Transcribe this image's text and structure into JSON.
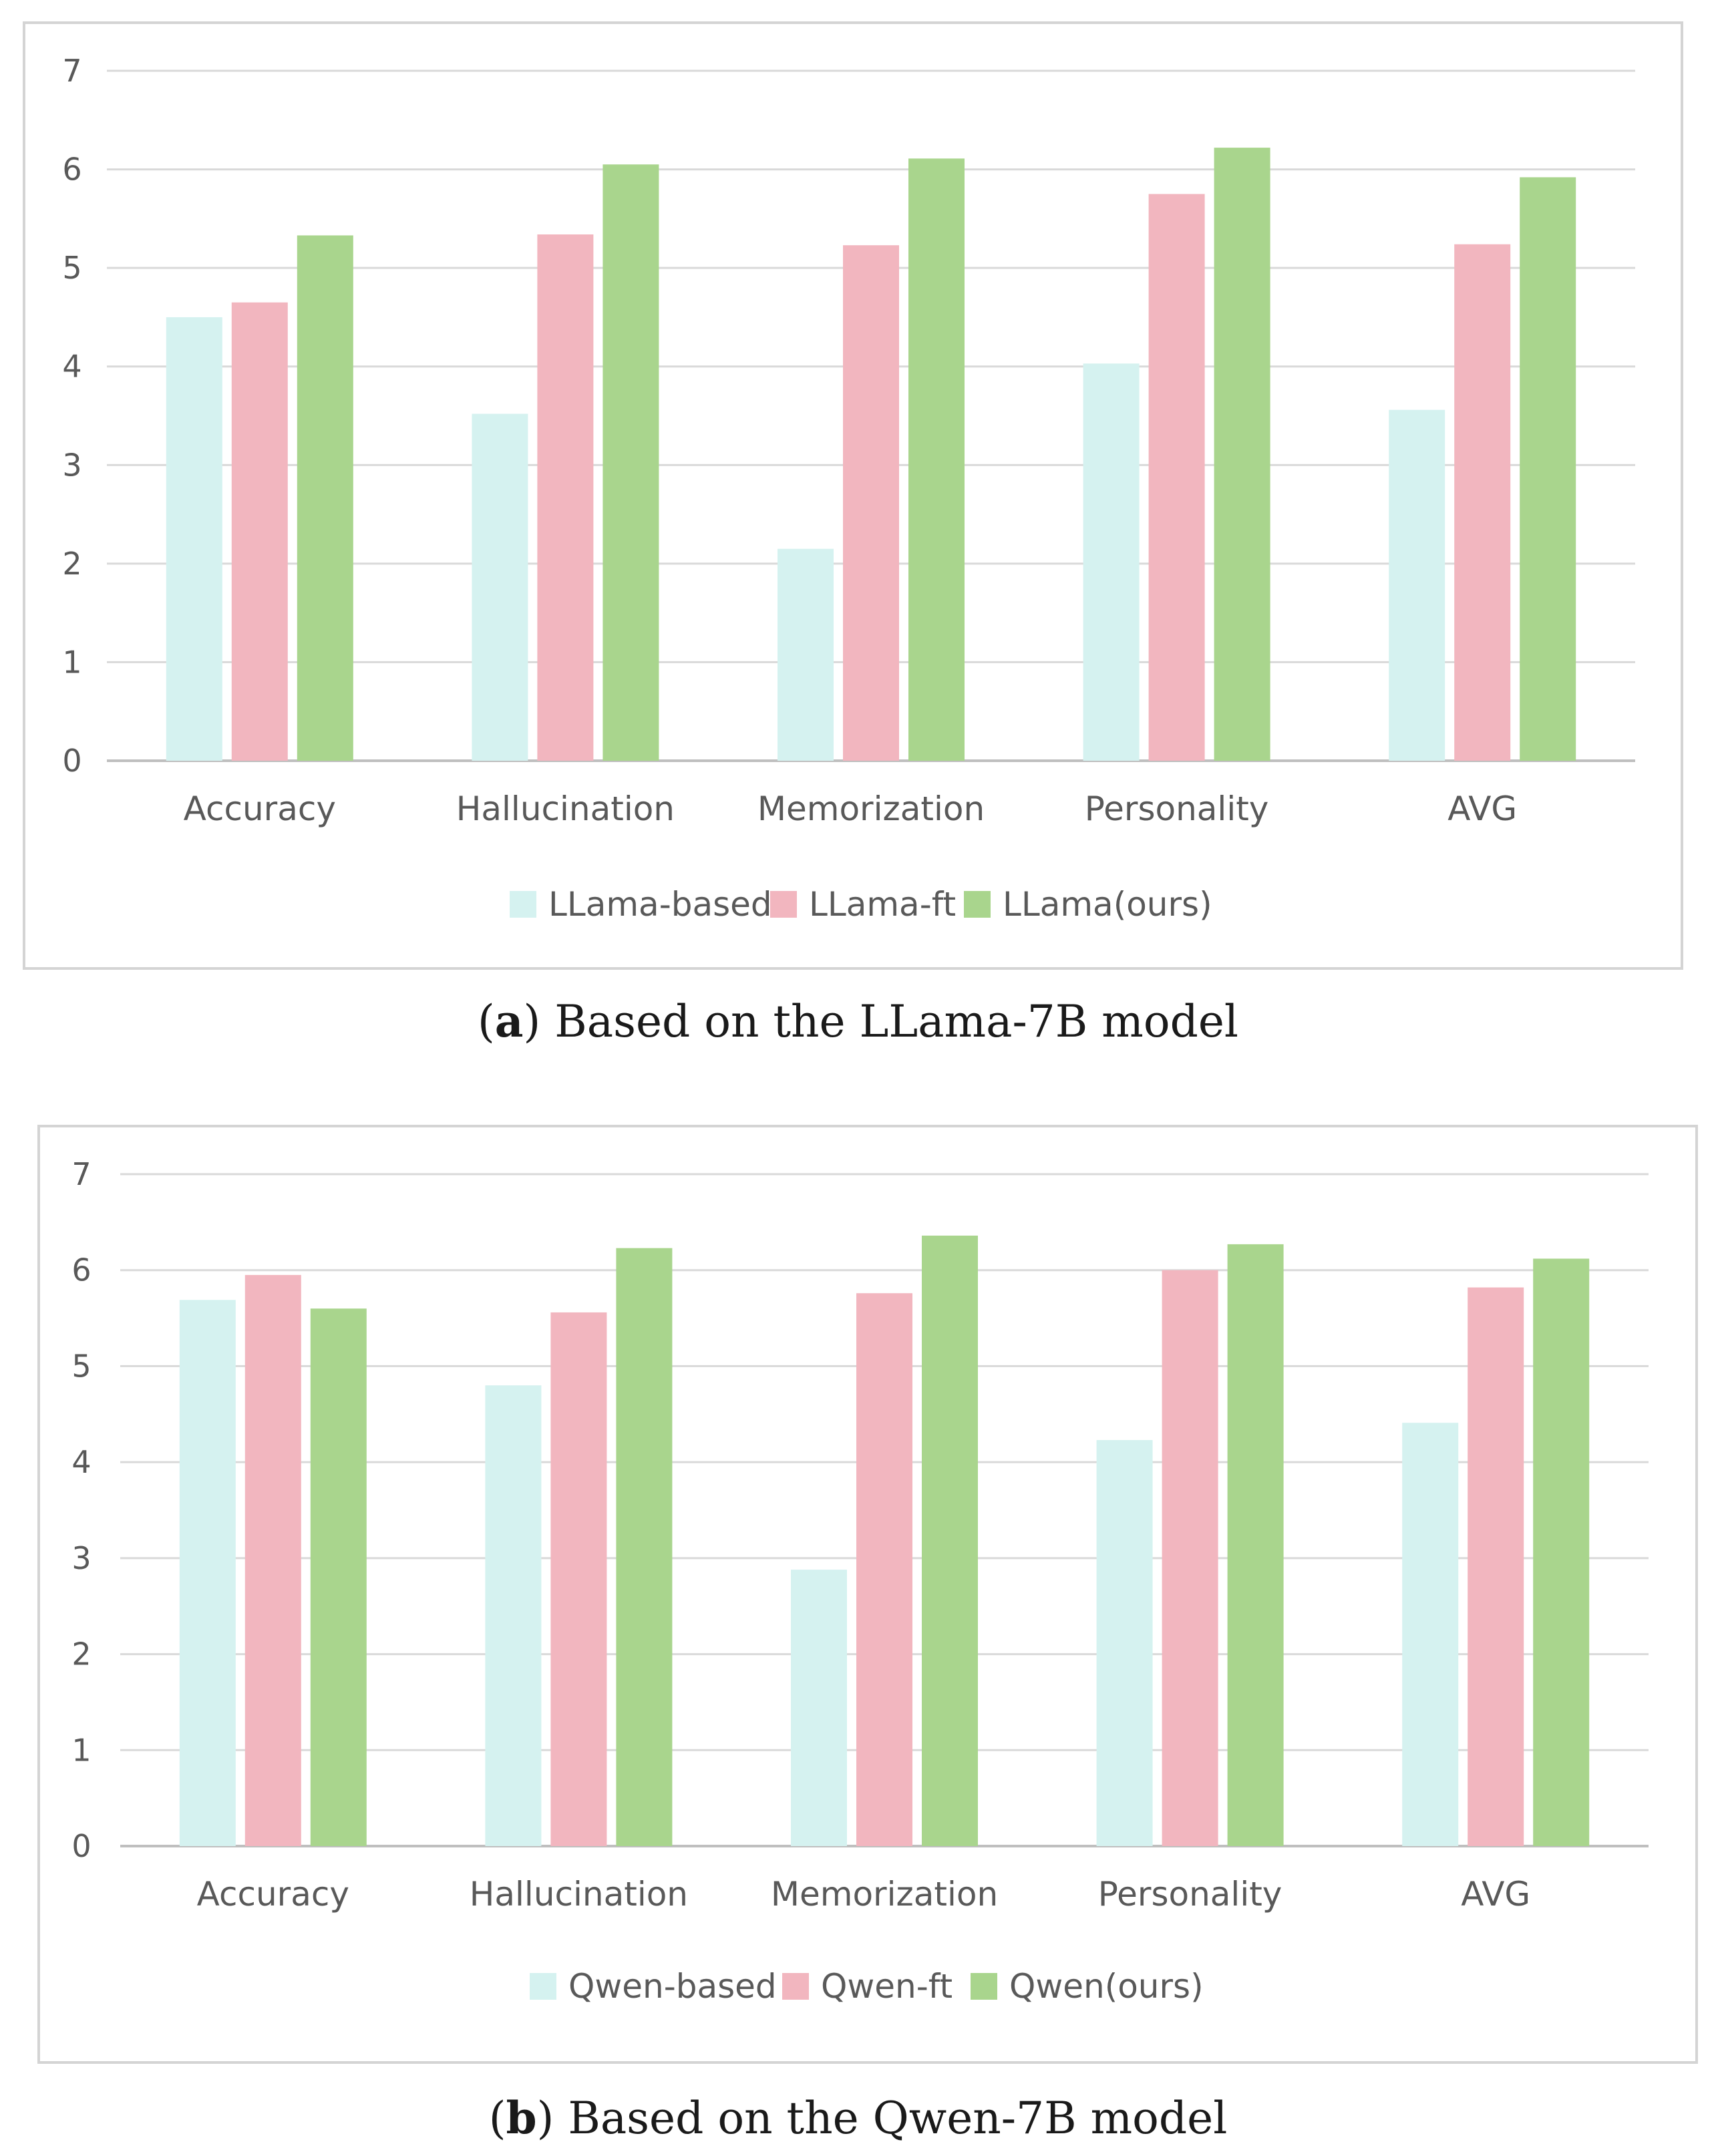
{
  "chart_data": [
    {
      "type": "bar",
      "title": "",
      "caption": {
        "label": "a",
        "text": "Based on the LLama-7B model"
      },
      "categories": [
        "Accuracy",
        "Hallucination",
        "Memorization",
        "Personality",
        "AVG"
      ],
      "series": [
        {
          "name": "LLama-based",
          "color": "#d5f2f0",
          "values": [
            4.5,
            3.52,
            2.15,
            4.03,
            3.56
          ]
        },
        {
          "name": "LLama-ft",
          "color": "#f2b6bf",
          "values": [
            4.65,
            5.34,
            5.23,
            5.75,
            5.24
          ]
        },
        {
          "name": "LLama(ours)",
          "color": "#a9d58d",
          "values": [
            5.33,
            6.05,
            6.11,
            6.22,
            5.92
          ]
        }
      ],
      "yticks": [
        "0",
        "1",
        "2",
        "3",
        "4",
        "5",
        "6",
        "7"
      ],
      "ylim": [
        0,
        7
      ],
      "grid": true,
      "legend": "bottom-center",
      "xlabel": "",
      "ylabel": ""
    },
    {
      "type": "bar",
      "title": "",
      "caption": {
        "label": "b",
        "text": "Based on the Qwen-7B model"
      },
      "categories": [
        "Accuracy",
        "Hallucination",
        "Memorization",
        "Personality",
        "AVG"
      ],
      "series": [
        {
          "name": "Qwen-based",
          "color": "#d5f2f0",
          "values": [
            5.69,
            4.8,
            2.88,
            4.23,
            4.41
          ]
        },
        {
          "name": "Qwen-ft",
          "color": "#f2b6bf",
          "values": [
            5.95,
            5.56,
            5.76,
            6.0,
            5.82
          ]
        },
        {
          "name": "Qwen(ours)",
          "color": "#a9d58d",
          "values": [
            5.6,
            6.23,
            6.36,
            6.27,
            6.12
          ]
        }
      ],
      "yticks": [
        "0",
        "1",
        "2",
        "3",
        "4",
        "5",
        "6",
        "7"
      ],
      "ylim": [
        0,
        7
      ],
      "grid": true,
      "legend": "bottom-center",
      "xlabel": "",
      "ylabel": ""
    }
  ]
}
